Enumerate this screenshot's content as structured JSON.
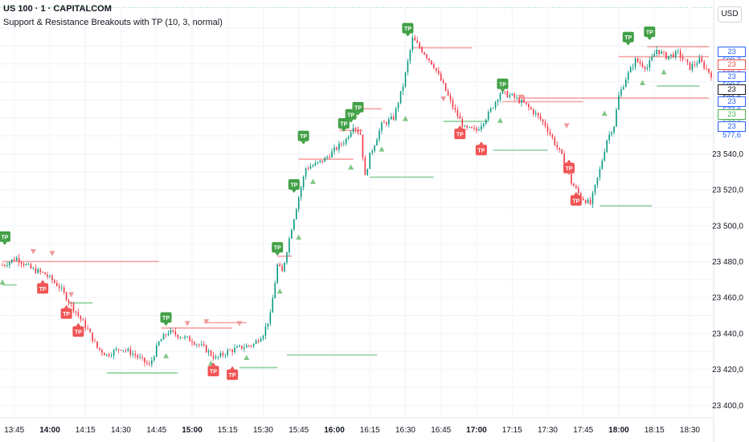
{
  "header": {
    "symbol_line": "US 100 · 1 · CAPITALCOM",
    "indicator_line": "Support & Resistance Breakouts with TP (10, 3, normal)",
    "currency": "USD"
  },
  "axis": {
    "y_ticks": [
      "23 540,0",
      "23 520,0",
      "23 500,0",
      "23 480,0",
      "23 460,0",
      "23 440,0",
      "23 420,0",
      "23 400,0"
    ],
    "y_tick_values": [
      23540,
      23520,
      23500,
      23480,
      23460,
      23440,
      23420,
      23400
    ],
    "x_ticks": [
      "13:45",
      "14:00",
      "14:15",
      "14:30",
      "14:45",
      "15:00",
      "15:15",
      "15:30",
      "15:45",
      "16:00",
      "16:15",
      "16:30",
      "16:45",
      "17:00",
      "17:15",
      "17:30",
      "17:45",
      "18:00",
      "18:15",
      "18:30"
    ],
    "x_bold": [
      "14:00",
      "15:00",
      "16:00",
      "17:00",
      "18:00"
    ]
  },
  "price_tags": [
    {
      "label": "23 599,7",
      "value": 23599.7,
      "color": "#2962ff"
    },
    {
      "label": "23 599,6",
      "value": 23599.6,
      "color": "#ef5350"
    },
    {
      "label": "23 599,5",
      "value": 23599.5,
      "color": "#2962ff"
    },
    {
      "label": "23 583,9",
      "value": 23583.9,
      "color": "#131722"
    },
    {
      "label": "23 577,8",
      "value": 23577.8,
      "color": "#2962ff"
    },
    {
      "label": "23 577,7",
      "value": 23577.7,
      "color": "#4caf50"
    },
    {
      "label": "23 577,6",
      "value": 23577.6,
      "color": "#2962ff"
    }
  ],
  "colors": {
    "up": "#089981",
    "down": "#f23645",
    "resistance": "#f7a1a1",
    "support": "#8fd19e",
    "tp_green": "#43a047",
    "tp_red": "#f05454",
    "grid": "#f0f3fa"
  },
  "chart_data": {
    "type": "candlestick",
    "y_unit": "price",
    "ylim": [
      23393,
      23622
    ],
    "x_range": [
      "13:40",
      "18:39"
    ],
    "price_path": [
      [
        "13:40",
        23478
      ],
      [
        "13:46",
        23482
      ],
      [
        "13:52",
        23476
      ],
      [
        "13:58",
        23473
      ],
      [
        "14:04",
        23466
      ],
      [
        "14:08",
        23458
      ],
      [
        "14:12",
        23450
      ],
      [
        "14:16",
        23442
      ],
      [
        "14:20",
        23432
      ],
      [
        "14:24",
        23428
      ],
      [
        "14:30",
        23432
      ],
      [
        "14:36",
        23428
      ],
      [
        "14:42",
        23422
      ],
      [
        "14:46",
        23435
      ],
      [
        "14:50",
        23441
      ],
      [
        "14:56",
        23438
      ],
      [
        "15:00",
        23436
      ],
      [
        "15:05",
        23432
      ],
      [
        "15:10",
        23426
      ],
      [
        "15:15",
        23430
      ],
      [
        "15:20",
        23432
      ],
      [
        "15:26",
        23434
      ],
      [
        "15:30",
        23440
      ],
      [
        "15:33",
        23450
      ],
      [
        "15:36",
        23478
      ],
      [
        "15:38",
        23474
      ],
      [
        "15:42",
        23499
      ],
      [
        "15:45",
        23516
      ],
      [
        "15:48",
        23532
      ],
      [
        "15:52",
        23534
      ],
      [
        "15:56",
        23537
      ],
      [
        "16:00",
        23542
      ],
      [
        "16:05",
        23548
      ],
      [
        "16:08",
        23556
      ],
      [
        "16:11",
        23551
      ],
      [
        "16:13",
        23527
      ],
      [
        "16:15",
        23539
      ],
      [
        "16:20",
        23556
      ],
      [
        "16:25",
        23560
      ],
      [
        "16:29",
        23578
      ],
      [
        "16:33",
        23604
      ],
      [
        "16:38",
        23596
      ],
      [
        "16:42",
        23589
      ],
      [
        "16:46",
        23578
      ],
      [
        "16:50",
        23566
      ],
      [
        "16:55",
        23554
      ],
      [
        "17:00",
        23553
      ],
      [
        "17:05",
        23562
      ],
      [
        "17:10",
        23574
      ],
      [
        "17:15",
        23572
      ],
      [
        "17:20",
        23568
      ],
      [
        "17:25",
        23562
      ],
      [
        "17:29",
        23556
      ],
      [
        "17:33",
        23546
      ],
      [
        "17:37",
        23536
      ],
      [
        "17:40",
        23524
      ],
      [
        "17:44",
        23516
      ],
      [
        "17:48",
        23512
      ],
      [
        "17:52",
        23531
      ],
      [
        "17:55",
        23548
      ],
      [
        "17:58",
        23556
      ],
      [
        "18:00",
        23572
      ],
      [
        "18:03",
        23582
      ],
      [
        "18:07",
        23592
      ],
      [
        "18:12",
        23588
      ],
      [
        "18:16",
        23598
      ],
      [
        "18:20",
        23594
      ],
      [
        "18:25",
        23596
      ],
      [
        "18:30",
        23588
      ],
      [
        "18:34",
        23592
      ],
      [
        "18:39",
        23584
      ]
    ],
    "resistance_levels": [
      {
        "from": "13:40",
        "to": "14:46",
        "price": 23480
      },
      {
        "from": "14:47",
        "to": "15:17",
        "price": 23443
      },
      {
        "from": "15:05",
        "to": "15:23",
        "price": 23446
      },
      {
        "from": "15:36",
        "to": "15:42",
        "price": 23483
      },
      {
        "from": "15:45",
        "to": "16:08",
        "price": 23537
      },
      {
        "from": "16:02",
        "to": "16:12",
        "price": 23553
      },
      {
        "from": "16:11",
        "to": "16:20",
        "price": 23565
      },
      {
        "from": "16:33",
        "to": "16:58",
        "price": 23599
      },
      {
        "from": "17:11",
        "to": "17:45",
        "price": 23569
      },
      {
        "from": "17:18",
        "to": "18:38",
        "price": 23571
      },
      {
        "from": "18:00",
        "to": "18:38",
        "price": 23594
      },
      {
        "from": "18:12",
        "to": "18:38",
        "price": 23599.6
      }
    ],
    "support_levels": [
      {
        "from": "13:40",
        "to": "13:46",
        "price": 23467
      },
      {
        "from": "14:08",
        "to": "14:18",
        "price": 23457
      },
      {
        "from": "14:24",
        "to": "14:54",
        "price": 23418
      },
      {
        "from": "15:20",
        "to": "15:36",
        "price": 23421
      },
      {
        "from": "15:40",
        "to": "16:18",
        "price": 23428
      },
      {
        "from": "16:15",
        "to": "16:42",
        "price": 23527
      },
      {
        "from": "16:46",
        "to": "17:05",
        "price": 23558
      },
      {
        "from": "17:07",
        "to": "17:30",
        "price": 23542
      },
      {
        "from": "17:52",
        "to": "18:14",
        "price": 23511
      },
      {
        "from": "18:16",
        "to": "18:34",
        "price": 23577.7
      }
    ],
    "tp_markers": [
      {
        "time": "13:41",
        "price": 23487,
        "side": "above",
        "color": "green",
        "label": "TP"
      },
      {
        "time": "13:57",
        "price": 23472,
        "side": "below",
        "color": "red",
        "label": "TP"
      },
      {
        "time": "14:07",
        "price": 23458,
        "side": "below",
        "color": "red",
        "label": "TP"
      },
      {
        "time": "14:12",
        "price": 23448,
        "side": "below",
        "color": "red",
        "label": "TP"
      },
      {
        "time": "14:49",
        "price": 23442,
        "side": "above",
        "color": "green",
        "label": "TP"
      },
      {
        "time": "15:09",
        "price": 23426,
        "side": "below",
        "color": "red",
        "label": "TP"
      },
      {
        "time": "15:17",
        "price": 23424,
        "side": "below",
        "color": "red",
        "label": "TP"
      },
      {
        "time": "15:36",
        "price": 23481,
        "side": "above",
        "color": "green",
        "label": "TP"
      },
      {
        "time": "15:43",
        "price": 23516,
        "side": "above",
        "color": "green",
        "label": "TP"
      },
      {
        "time": "15:47",
        "price": 23543,
        "side": "above",
        "color": "green",
        "label": "TP"
      },
      {
        "time": "16:04",
        "price": 23550,
        "side": "above",
        "color": "green",
        "label": "TP"
      },
      {
        "time": "16:07",
        "price": 23555,
        "side": "above",
        "color": "green",
        "label": "TP"
      },
      {
        "time": "16:10",
        "price": 23559,
        "side": "above",
        "color": "green",
        "label": "TP"
      },
      {
        "time": "16:31",
        "price": 23603,
        "side": "above",
        "color": "green",
        "label": "TP"
      },
      {
        "time": "16:53",
        "price": 23558,
        "side": "below",
        "color": "red",
        "label": "TP"
      },
      {
        "time": "17:02",
        "price": 23549,
        "side": "below",
        "color": "red",
        "label": "TP"
      },
      {
        "time": "17:11",
        "price": 23572,
        "side": "above",
        "color": "green",
        "label": "TP"
      },
      {
        "time": "17:39",
        "price": 23539,
        "side": "below",
        "color": "red",
        "label": "TP"
      },
      {
        "time": "17:42",
        "price": 23521,
        "side": "below",
        "color": "red",
        "label": "TP"
      },
      {
        "time": "18:04",
        "price": 23598,
        "side": "above",
        "color": "green",
        "label": "TP"
      },
      {
        "time": "18:13",
        "price": 23601,
        "side": "above",
        "color": "green",
        "label": "TP"
      }
    ],
    "breakout_up_arrows": [
      [
        "13:40",
        23473
      ],
      [
        "14:49",
        23432
      ],
      [
        "15:08",
        23428
      ],
      [
        "15:23",
        23431
      ],
      [
        "15:37",
        23468
      ],
      [
        "15:45",
        23498
      ],
      [
        "15:51",
        23529
      ],
      [
        "16:07",
        23537
      ],
      [
        "16:20",
        23547
      ],
      [
        "16:30",
        23564
      ],
      [
        "17:10",
        23563
      ],
      [
        "17:54",
        23567
      ],
      [
        "18:10",
        23584
      ],
      [
        "18:19",
        23590
      ]
    ],
    "breakout_down_arrows": [
      [
        "13:53",
        23482
      ],
      [
        "14:01",
        23481
      ],
      [
        "14:09",
        23458
      ],
      [
        "14:58",
        23442
      ],
      [
        "15:06",
        23443
      ],
      [
        "15:20",
        23442
      ],
      [
        "16:46",
        23567
      ],
      [
        "17:19",
        23568
      ],
      [
        "17:38",
        23552
      ]
    ]
  }
}
